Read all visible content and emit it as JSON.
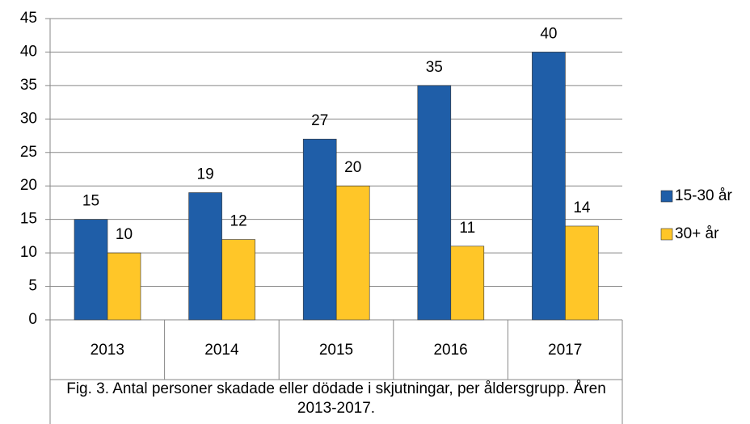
{
  "chart_data": {
    "type": "bar",
    "caption": "Fig. 3. Antal personer skadade eller dödade i skjutningar, per åldersgrupp. Åren 2013-2017.",
    "categories": [
      "2013",
      "2014",
      "2015",
      "2016",
      "2017"
    ],
    "series": [
      {
        "name": "15-30 år",
        "color": "#1f5ea8",
        "values": [
          15,
          19,
          27,
          35,
          40
        ]
      },
      {
        "name": "30+ år",
        "color": "#ffc628",
        "values": [
          10,
          12,
          20,
          11,
          14
        ]
      }
    ],
    "ylim": [
      0,
      45
    ],
    "yticks": [
      0,
      5,
      10,
      15,
      20,
      25,
      30,
      35,
      40,
      45
    ],
    "grid": true,
    "legend": "right"
  }
}
